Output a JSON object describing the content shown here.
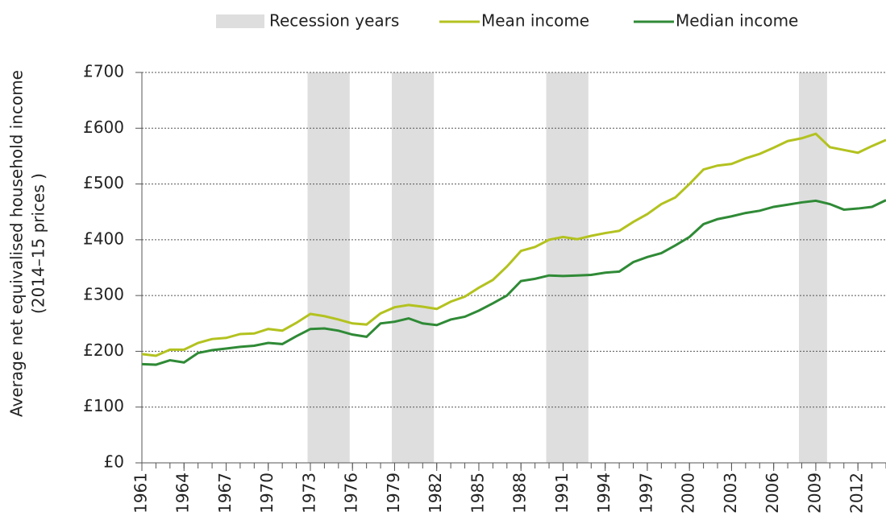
{
  "chart_data": {
    "type": "line",
    "y_label": [
      "Average net equivalised household income",
      "(2014–15 prices )"
    ],
    "recession_label": "Recession years",
    "recession_color": "#dedede",
    "recessions": [
      [
        1972.8,
        1975.8
      ],
      [
        1978.8,
        1981.8
      ],
      [
        1989.8,
        1992.8
      ],
      [
        2007.8,
        2009.8
      ]
    ],
    "x": [
      1961,
      1962,
      1963,
      1964,
      1965,
      1966,
      1967,
      1968,
      1969,
      1970,
      1971,
      1972,
      1973,
      1974,
      1975,
      1976,
      1977,
      1978,
      1979,
      1980,
      1981,
      1982,
      1983,
      1984,
      1985,
      1986,
      1987,
      1988,
      1989,
      1990,
      1991,
      1992,
      1993,
      1994,
      1995,
      1996,
      1997,
      1998,
      1999,
      2000,
      2001,
      2002,
      2003,
      2004,
      2005,
      2006,
      2007,
      2008,
      2009,
      2010,
      2011,
      2012,
      2013,
      2014
    ],
    "series": [
      {
        "name": "Mean income",
        "color": "#b3c21f",
        "values": [
          195,
          192,
          203,
          203,
          215,
          222,
          224,
          231,
          232,
          240,
          237,
          251,
          267,
          263,
          257,
          250,
          248,
          268,
          279,
          283,
          280,
          276,
          289,
          298,
          314,
          328,
          352,
          380,
          387,
          400,
          405,
          401,
          407,
          412,
          416,
          432,
          446,
          464,
          476,
          500,
          526,
          533,
          536,
          546,
          554,
          565,
          577,
          582,
          590,
          566,
          561,
          556,
          568,
          579
        ]
      },
      {
        "name": "Median income",
        "color": "#2f8a36",
        "values": [
          177,
          176,
          184,
          180,
          197,
          202,
          205,
          208,
          210,
          215,
          213,
          227,
          240,
          241,
          237,
          230,
          226,
          250,
          253,
          259,
          250,
          247,
          257,
          262,
          273,
          286,
          300,
          326,
          330,
          336,
          335,
          336,
          337,
          341,
          343,
          360,
          369,
          376,
          390,
          405,
          428,
          437,
          442,
          448,
          452,
          459,
          463,
          467,
          470,
          464,
          454,
          456,
          459,
          471
        ]
      }
    ],
    "xlim": [
      1961,
      2014
    ],
    "xticks": [
      1961,
      1964,
      1967,
      1970,
      1973,
      1976,
      1979,
      1982,
      1985,
      1988,
      1991,
      1994,
      1997,
      2000,
      2003,
      2006,
      2009,
      2012
    ],
    "ylim": [
      0,
      700
    ],
    "yticks": [
      {
        "value": 0,
        "label": "£0"
      },
      {
        "value": 100,
        "label": "£100"
      },
      {
        "value": 200,
        "label": "£200"
      },
      {
        "value": 300,
        "label": "£300"
      },
      {
        "value": 400,
        "label": "£400"
      },
      {
        "value": 500,
        "label": "£500"
      },
      {
        "value": 600,
        "label": "£600"
      },
      {
        "value": 700,
        "label": "£700"
      }
    ],
    "grid": true
  }
}
